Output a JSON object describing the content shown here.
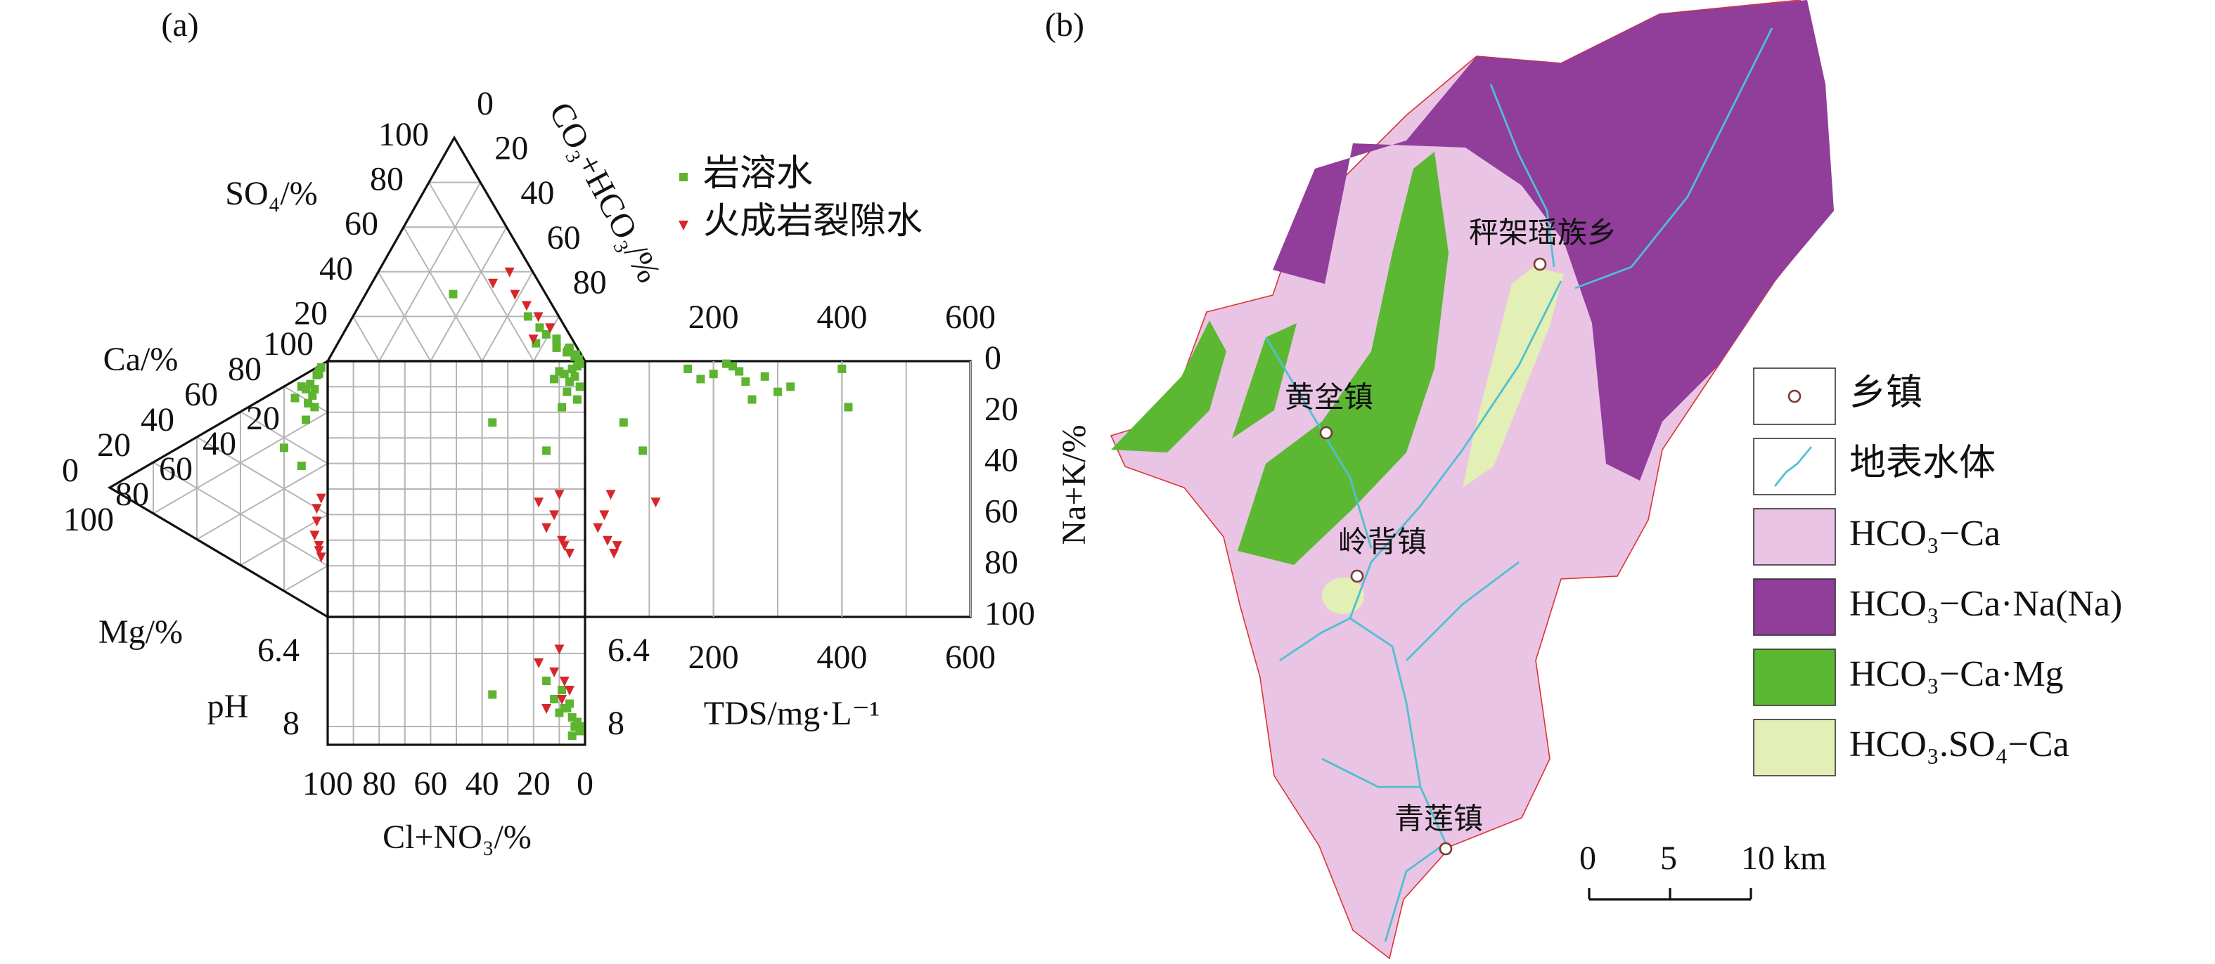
{
  "chart_data": [
    {
      "type": "durov",
      "label": "(a)",
      "axes": {
        "so4": {
          "title": "SO₄/%",
          "ticks": [
            100,
            80,
            60,
            40,
            20
          ]
        },
        "hco3": {
          "title": "CO₃+HCO₃/%",
          "ticks": [
            0,
            20,
            40,
            60,
            80
          ]
        },
        "ca": {
          "title": "Ca/%",
          "ticks": [
            100,
            80,
            60,
            40,
            20,
            0
          ]
        },
        "mg": {
          "title": "Mg/%",
          "ticks": [
            100,
            80,
            60,
            40,
            20
          ]
        },
        "cl": {
          "title": "Cl+NO₃/%",
          "lim": [
            0,
            100
          ],
          "ticks": [
            100,
            80,
            60,
            40,
            20,
            0
          ]
        },
        "na": {
          "title": "Na+K/%",
          "lim": [
            0,
            100
          ],
          "ticks": [
            0,
            20,
            40,
            60,
            80,
            100
          ]
        },
        "tds": {
          "title": "TDS/mg·L⁻¹",
          "lim": [
            0,
            600
          ],
          "ticks": [
            200,
            400,
            600
          ]
        },
        "ph": {
          "title": "pH",
          "lim": [
            5.6,
            8.4
          ],
          "ticks": [
            6.4,
            8
          ]
        }
      },
      "series": [
        {
          "name": "岩溶水",
          "color": "#5db42f",
          "marker": "square",
          "cl": [
            5,
            8,
            3,
            6,
            4,
            10,
            2,
            7,
            12,
            3,
            36,
            9,
            5,
            15,
            2
          ],
          "so4": [
            4,
            6,
            2,
            10,
            5,
            15,
            3,
            8,
            20,
            6,
            30,
            12,
            4,
            8,
            1
          ],
          "na": [
            3,
            5,
            2,
            8,
            6,
            4,
            10,
            12,
            7,
            15,
            24,
            18,
            3,
            35,
            1
          ],
          "mg": [
            5,
            8,
            4,
            6,
            10,
            12,
            7,
            9,
            15,
            6,
            20,
            10,
            4,
            12,
            3
          ],
          "tds": [
            160,
            200,
            230,
            250,
            280,
            240,
            320,
            300,
            180,
            260,
            60,
            410,
            400,
            90,
            220
          ],
          "ph": [
            7.8,
            7.6,
            7.9,
            7.5,
            8.0,
            7.7,
            8.1,
            7.6,
            7.4,
            7.9,
            7.3,
            7.2,
            8.2,
            7.0,
            8.0
          ]
        },
        {
          "name": "火成岩裂隙水",
          "color": "#d7262b",
          "marker": "triangle",
          "cl": [
            10,
            12,
            8,
            15,
            6,
            18,
            9
          ],
          "so4": [
            25,
            30,
            20,
            10,
            15,
            35,
            40
          ],
          "na": [
            52,
            60,
            72,
            65,
            75,
            55,
            70
          ],
          "mg": [
            3,
            5,
            4,
            6,
            3,
            5,
            4
          ],
          "tds": [
            40,
            30,
            50,
            20,
            45,
            110,
            35
          ],
          "ph": [
            6.3,
            6.8,
            7.0,
            7.6,
            7.2,
            6.6,
            7.4
          ]
        }
      ]
    },
    {
      "type": "map",
      "label": "(b)",
      "towns": [
        "秤架瑶族乡",
        "黄坌镇",
        "岭背镇",
        "青莲镇"
      ],
      "legend": [
        {
          "label": "乡镇"
        },
        {
          "label": "地表水体"
        },
        {
          "label": "HCO₃−Ca",
          "color": "#e9c4e4"
        },
        {
          "label": "HCO₃−Ca·Na(Na)",
          "color": "#913d9a"
        },
        {
          "label": "HCO₃−Ca·Mg",
          "color": "#5cb832"
        },
        {
          "label": "HCO₃.SO₄−Ca",
          "color": "#e2efb5"
        }
      ],
      "scale": {
        "ticks": [
          0,
          5,
          {
            "value": 10,
            "label": "10 km"
          }
        ]
      }
    }
  ]
}
